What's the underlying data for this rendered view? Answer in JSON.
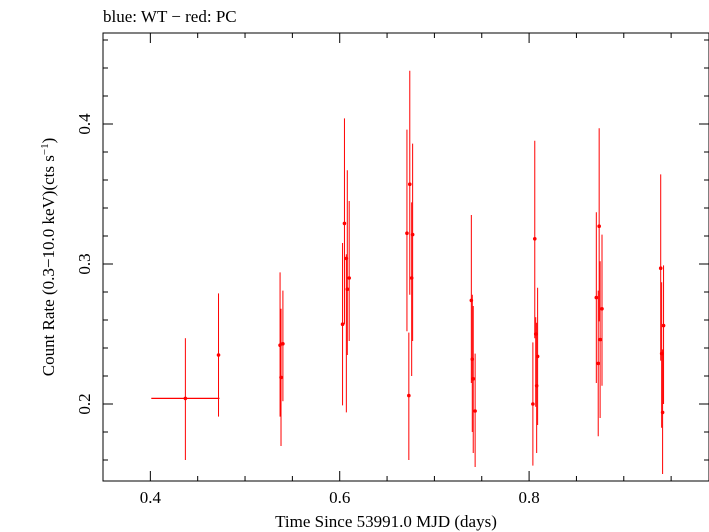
{
  "chart_data": {
    "type": "scatter",
    "title": "blue: WT − red: PC",
    "xlabel": "Time Since 53991.0 MJD (days)",
    "ylabel_main": "Count Rate (0.3−10.0 keV)(cts s",
    "ylabel_sup": "−1",
    "ylabel_close": ")",
    "xlim": [
      0.35,
      0.99
    ],
    "ylim": [
      0.145,
      0.465
    ],
    "x_major_ticks": [
      0.4,
      0.6,
      0.8
    ],
    "x_tick_labels": [
      "0.4",
      "0.6",
      "0.8"
    ],
    "y_major_ticks": [
      0.2,
      0.3,
      0.4
    ],
    "y_tick_labels": [
      "0.2",
      "0.3",
      "0.4"
    ],
    "grid": false,
    "series": [
      {
        "color": "#ff0000",
        "points": [
          {
            "x": 0.437,
            "y": 0.204,
            "xerr": 0.036,
            "ylo": 0.16,
            "yhi": 0.247
          },
          {
            "x": 0.472,
            "y": 0.235,
            "xerr": 0,
            "ylo": 0.191,
            "yhi": 0.279
          },
          {
            "x": 0.537,
            "y": 0.242,
            "xerr": 0,
            "ylo": 0.191,
            "yhi": 0.294
          },
          {
            "x": 0.538,
            "y": 0.219,
            "xerr": 0,
            "ylo": 0.17,
            "yhi": 0.268
          },
          {
            "x": 0.54,
            "y": 0.243,
            "xerr": 0,
            "ylo": 0.202,
            "yhi": 0.281
          },
          {
            "x": 0.603,
            "y": 0.257,
            "xerr": 0,
            "ylo": 0.199,
            "yhi": 0.315
          },
          {
            "x": 0.605,
            "y": 0.329,
            "xerr": 0,
            "ylo": 0.257,
            "yhi": 0.404
          },
          {
            "x": 0.607,
            "y": 0.304,
            "xerr": 0,
            "ylo": 0.194,
            "yhi": 0.307
          },
          {
            "x": 0.608,
            "y": 0.282,
            "xerr": 0,
            "ylo": 0.235,
            "yhi": 0.367
          },
          {
            "x": 0.61,
            "y": 0.29,
            "xerr": 0,
            "ylo": 0.245,
            "yhi": 0.345
          },
          {
            "x": 0.671,
            "y": 0.322,
            "xerr": 0,
            "ylo": 0.252,
            "yhi": 0.396
          },
          {
            "x": 0.673,
            "y": 0.206,
            "xerr": 0,
            "ylo": 0.16,
            "yhi": 0.251
          },
          {
            "x": 0.674,
            "y": 0.357,
            "xerr": 0,
            "ylo": 0.278,
            "yhi": 0.438
          },
          {
            "x": 0.676,
            "y": 0.29,
            "xerr": 0,
            "ylo": 0.22,
            "yhi": 0.344
          },
          {
            "x": 0.677,
            "y": 0.321,
            "xerr": 0,
            "ylo": 0.245,
            "yhi": 0.386
          },
          {
            "x": 0.739,
            "y": 0.274,
            "xerr": 0,
            "ylo": 0.215,
            "yhi": 0.335
          },
          {
            "x": 0.74,
            "y": 0.232,
            "xerr": 0,
            "ylo": 0.18,
            "yhi": 0.278
          },
          {
            "x": 0.741,
            "y": 0.218,
            "xerr": 0,
            "ylo": 0.165,
            "yhi": 0.27
          },
          {
            "x": 0.743,
            "y": 0.195,
            "xerr": 0,
            "ylo": 0.155,
            "yhi": 0.236
          },
          {
            "x": 0.804,
            "y": 0.2,
            "xerr": 0,
            "ylo": 0.156,
            "yhi": 0.244
          },
          {
            "x": 0.806,
            "y": 0.318,
            "xerr": 0,
            "ylo": 0.247,
            "yhi": 0.388
          },
          {
            "x": 0.807,
            "y": 0.25,
            "xerr": 0,
            "ylo": 0.198,
            "yhi": 0.262
          },
          {
            "x": 0.808,
            "y": 0.213,
            "xerr": 0,
            "ylo": 0.165,
            "yhi": 0.258
          },
          {
            "x": 0.809,
            "y": 0.234,
            "xerr": 0,
            "ylo": 0.185,
            "yhi": 0.283
          },
          {
            "x": 0.871,
            "y": 0.276,
            "xerr": 0,
            "ylo": 0.215,
            "yhi": 0.337
          },
          {
            "x": 0.873,
            "y": 0.229,
            "xerr": 0,
            "ylo": 0.177,
            "yhi": 0.281
          },
          {
            "x": 0.874,
            "y": 0.327,
            "xerr": 0,
            "ylo": 0.259,
            "yhi": 0.397
          },
          {
            "x": 0.875,
            "y": 0.246,
            "xerr": 0,
            "ylo": 0.19,
            "yhi": 0.302
          },
          {
            "x": 0.877,
            "y": 0.268,
            "xerr": 0,
            "ylo": 0.213,
            "yhi": 0.321
          },
          {
            "x": 0.939,
            "y": 0.297,
            "xerr": 0,
            "ylo": 0.231,
            "yhi": 0.364
          },
          {
            "x": 0.94,
            "y": 0.236,
            "xerr": 0,
            "ylo": 0.183,
            "yhi": 0.287
          },
          {
            "x": 0.941,
            "y": 0.194,
            "xerr": 0,
            "ylo": 0.15,
            "yhi": 0.239
          },
          {
            "x": 0.942,
            "y": 0.256,
            "xerr": 0,
            "ylo": 0.2,
            "yhi": 0.299
          }
        ]
      }
    ]
  }
}
